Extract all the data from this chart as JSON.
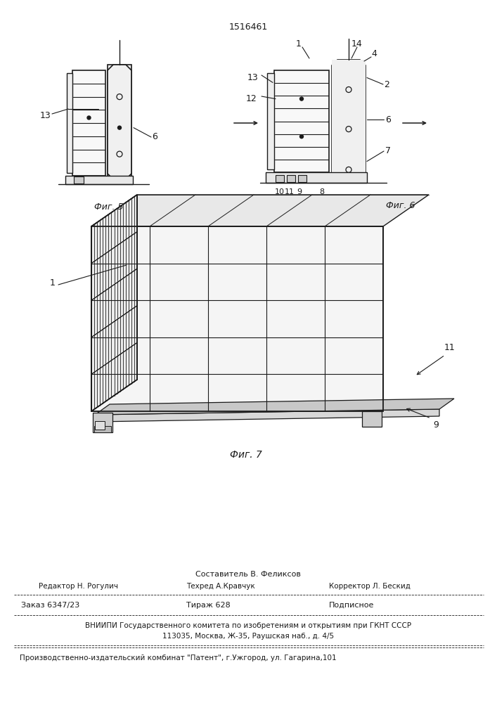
{
  "patent_number": "1516461",
  "bg_color": "#ffffff",
  "lc": "#1a1a1a",
  "fig5_label": "Фиг. 5",
  "fig6_label": "Фиг. 6",
  "fig7_label": "Фиг. 7",
  "footer_col1_row1": "Составитель В. Феликсов",
  "footer_col1_row2": "Редактор Н. Рогулич",
  "footer_col2_row2": "Техред А.Кравчук",
  "footer_col3_row2": "Корректор Л. Бескид",
  "footer_col1_row3": "Заказ 6347/23",
  "footer_col2_row3": "Тираж 628",
  "footer_col3_row3": "Подписное",
  "footer_vniip1": "ВНИИПИ Государственного комитета по изобретениям и открытиям при ГКНТ СССР",
  "footer_vniip2": "113035, Москва, Ж-35, Раушская наб., д. 4/5",
  "footer_patent": "Производственно-издательский комбинат \"Патент\", г.Ужгород, ул. Гагарина,101"
}
